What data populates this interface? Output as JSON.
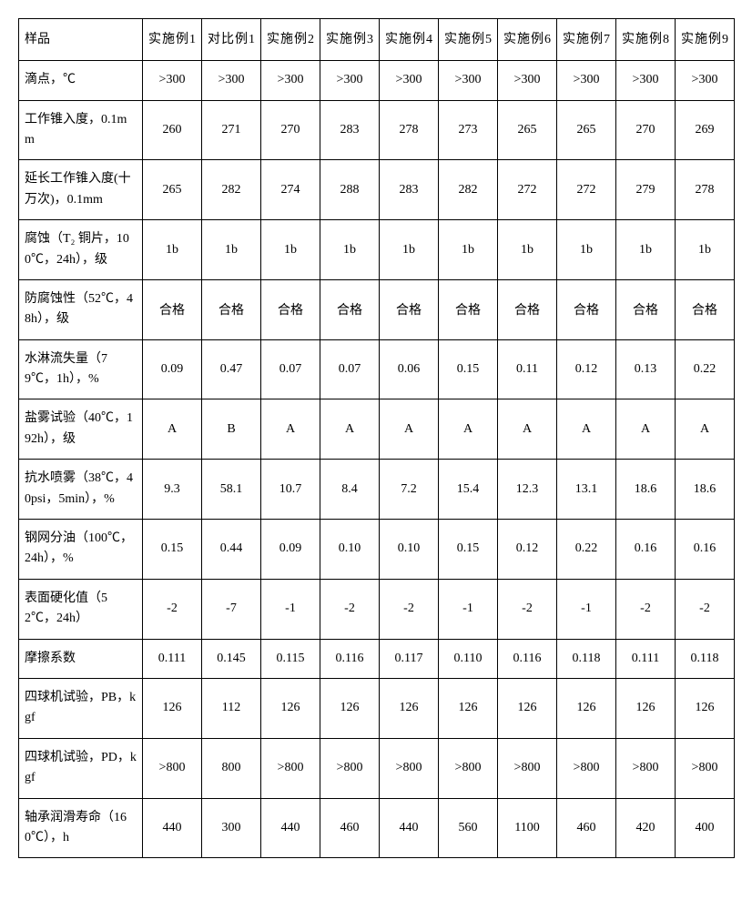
{
  "table": {
    "columns": [
      "样品",
      "实施例1",
      "对比例1",
      "实施例2",
      "实施例3",
      "实施例4",
      "实施例5",
      "实施例6",
      "实施例7",
      "实施例8",
      "实施例9"
    ],
    "rows": [
      {
        "label": "滴点，℃",
        "values": [
          ">300",
          ">300",
          ">300",
          ">300",
          ">300",
          ">300",
          ">300",
          ">300",
          ">300",
          ">300"
        ]
      },
      {
        "label": "工作锥入度，0.1mm",
        "values": [
          "260",
          "271",
          "270",
          "283",
          "278",
          "273",
          "265",
          "265",
          "270",
          "269"
        ]
      },
      {
        "label": "延长工作锥入度(十万次)，0.1mm",
        "values": [
          "265",
          "282",
          "274",
          "288",
          "283",
          "282",
          "272",
          "272",
          "279",
          "278"
        ]
      },
      {
        "label": "腐蚀（T₂ 铜片，100℃，24h），级",
        "values": [
          "1b",
          "1b",
          "1b",
          "1b",
          "1b",
          "1b",
          "1b",
          "1b",
          "1b",
          "1b"
        ]
      },
      {
        "label": "防腐蚀性（52℃，48h），级",
        "values": [
          "合格",
          "合格",
          "合格",
          "合格",
          "合格",
          "合格",
          "合格",
          "合格",
          "合格",
          "合格"
        ]
      },
      {
        "label": "水淋流失量（79℃，1h），%",
        "values": [
          "0.09",
          "0.47",
          "0.07",
          "0.07",
          "0.06",
          "0.15",
          "0.11",
          "0.12",
          "0.13",
          "0.22"
        ]
      },
      {
        "label": "盐雾试验（40℃，192h），级",
        "values": [
          "A",
          "B",
          "A",
          "A",
          "A",
          "A",
          "A",
          "A",
          "A",
          "A"
        ]
      },
      {
        "label": "抗水喷雾（38℃，40psi，5min），%",
        "values": [
          "9.3",
          "58.1",
          "10.7",
          "8.4",
          "7.2",
          "15.4",
          "12.3",
          "13.1",
          "18.6",
          "18.6"
        ]
      },
      {
        "label": "钢网分油（100℃，24h），%",
        "values": [
          "0.15",
          "0.44",
          "0.09",
          "0.10",
          "0.10",
          "0.15",
          "0.12",
          "0.22",
          "0.16",
          "0.16"
        ]
      },
      {
        "label": "表面硬化值（52℃，24h）",
        "values": [
          "-2",
          "-7",
          "-1",
          "-2",
          "-2",
          "-1",
          "-2",
          "-1",
          "-2",
          "-2"
        ]
      },
      {
        "label": "摩擦系数",
        "values": [
          "0.111",
          "0.145",
          "0.115",
          "0.116",
          "0.117",
          "0.110",
          "0.116",
          "0.118",
          "0.111",
          "0.118"
        ]
      },
      {
        "label": "四球机试验，PB，kgf",
        "values": [
          "126",
          "112",
          "126",
          "126",
          "126",
          "126",
          "126",
          "126",
          "126",
          "126"
        ]
      },
      {
        "label": "四球机试验，PD，kgf",
        "values": [
          ">800",
          "800",
          ">800",
          ">800",
          ">800",
          ">800",
          ">800",
          ">800",
          ">800",
          ">800"
        ]
      },
      {
        "label": "轴承润滑寿命（160℃），h",
        "values": [
          "440",
          "300",
          "440",
          "460",
          "440",
          "560",
          "1100",
          "460",
          "420",
          "400"
        ]
      }
    ],
    "col_widths": {
      "label": 136,
      "data": 65
    },
    "border_color": "#000000",
    "background_color": "#ffffff",
    "font_family": "SimSun",
    "font_size": 14,
    "cell_padding": 8
  }
}
